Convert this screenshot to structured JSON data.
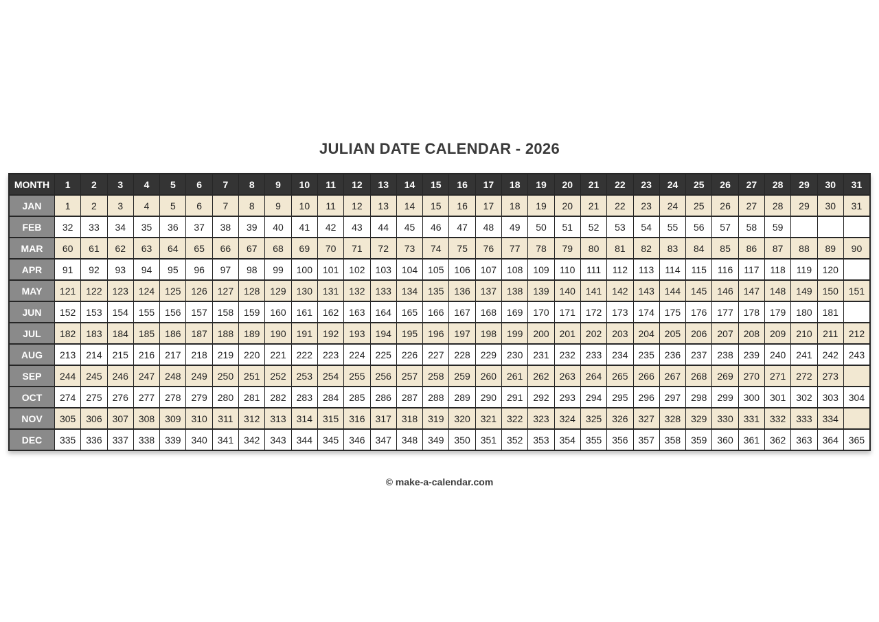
{
  "page": {
    "title": "JULIAN DATE CALENDAR - 2026",
    "footer_credit": "© make-a-calendar.com"
  },
  "calendar": {
    "corner_header": "MONTH",
    "day_headers": [
      1,
      2,
      3,
      4,
      5,
      6,
      7,
      8,
      9,
      10,
      11,
      12,
      13,
      14,
      15,
      16,
      17,
      18,
      19,
      20,
      21,
      22,
      23,
      24,
      25,
      26,
      27,
      28,
      29,
      30,
      31
    ],
    "months": [
      {
        "label": "JAN",
        "values": [
          1,
          2,
          3,
          4,
          5,
          6,
          7,
          8,
          9,
          10,
          11,
          12,
          13,
          14,
          15,
          16,
          17,
          18,
          19,
          20,
          21,
          22,
          23,
          24,
          25,
          26,
          27,
          28,
          29,
          30,
          31
        ]
      },
      {
        "label": "FEB",
        "values": [
          32,
          33,
          34,
          35,
          36,
          37,
          38,
          39,
          40,
          41,
          42,
          43,
          44,
          45,
          46,
          47,
          48,
          49,
          50,
          51,
          52,
          53,
          54,
          55,
          56,
          57,
          58,
          59,
          null,
          null,
          null
        ]
      },
      {
        "label": "MAR",
        "values": [
          60,
          61,
          62,
          63,
          64,
          65,
          66,
          67,
          68,
          69,
          70,
          71,
          72,
          73,
          74,
          75,
          76,
          77,
          78,
          79,
          80,
          81,
          82,
          83,
          84,
          85,
          86,
          87,
          88,
          89,
          90
        ]
      },
      {
        "label": "APR",
        "values": [
          91,
          92,
          93,
          94,
          95,
          96,
          97,
          98,
          99,
          100,
          101,
          102,
          103,
          104,
          105,
          106,
          107,
          108,
          109,
          110,
          111,
          112,
          113,
          114,
          115,
          116,
          117,
          118,
          119,
          120,
          null
        ]
      },
      {
        "label": "MAY",
        "values": [
          121,
          122,
          123,
          124,
          125,
          126,
          127,
          128,
          129,
          130,
          131,
          132,
          133,
          134,
          135,
          136,
          137,
          138,
          139,
          140,
          141,
          142,
          143,
          144,
          145,
          146,
          147,
          148,
          149,
          150,
          151
        ]
      },
      {
        "label": "JUN",
        "values": [
          152,
          153,
          154,
          155,
          156,
          157,
          158,
          159,
          160,
          161,
          162,
          163,
          164,
          165,
          166,
          167,
          168,
          169,
          170,
          171,
          172,
          173,
          174,
          175,
          176,
          177,
          178,
          179,
          180,
          181,
          null
        ]
      },
      {
        "label": "JUL",
        "values": [
          182,
          183,
          184,
          185,
          186,
          187,
          188,
          189,
          190,
          191,
          192,
          193,
          194,
          195,
          196,
          197,
          198,
          199,
          200,
          201,
          202,
          203,
          204,
          205,
          206,
          207,
          208,
          209,
          210,
          211,
          212
        ]
      },
      {
        "label": "AUG",
        "values": [
          213,
          214,
          215,
          216,
          217,
          218,
          219,
          220,
          221,
          222,
          223,
          224,
          225,
          226,
          227,
          228,
          229,
          230,
          231,
          232,
          233,
          234,
          235,
          236,
          237,
          238,
          239,
          240,
          241,
          242,
          243
        ]
      },
      {
        "label": "SEP",
        "values": [
          244,
          245,
          246,
          247,
          248,
          249,
          250,
          251,
          252,
          253,
          254,
          255,
          256,
          257,
          258,
          259,
          260,
          261,
          262,
          263,
          264,
          265,
          266,
          267,
          268,
          269,
          270,
          271,
          272,
          273,
          null
        ]
      },
      {
        "label": "OCT",
        "values": [
          274,
          275,
          276,
          277,
          278,
          279,
          280,
          281,
          282,
          283,
          284,
          285,
          286,
          287,
          288,
          289,
          290,
          291,
          292,
          293,
          294,
          295,
          296,
          297,
          298,
          299,
          300,
          301,
          302,
          303,
          304
        ]
      },
      {
        "label": "NOV",
        "values": [
          305,
          306,
          307,
          308,
          309,
          310,
          311,
          312,
          313,
          314,
          315,
          316,
          317,
          318,
          319,
          320,
          321,
          322,
          323,
          324,
          325,
          326,
          327,
          328,
          329,
          330,
          331,
          332,
          333,
          334,
          null
        ]
      },
      {
        "label": "DEC",
        "values": [
          335,
          336,
          337,
          338,
          339,
          340,
          341,
          342,
          343,
          344,
          345,
          346,
          347,
          348,
          349,
          350,
          351,
          352,
          353,
          354,
          355,
          356,
          357,
          358,
          359,
          360,
          361,
          362,
          363,
          364,
          365
        ]
      }
    ]
  },
  "colors": {
    "header_bg": "#343434",
    "header_text": "#ffffff",
    "month_bg": "#8a8a8a",
    "month_text": "#ffffff",
    "row_alt_bg": "#f2e8d2",
    "row_bg": "#ffffff",
    "border": "#262626",
    "cell_text": "#1f1f1f",
    "title_text": "#3a3a3a"
  }
}
